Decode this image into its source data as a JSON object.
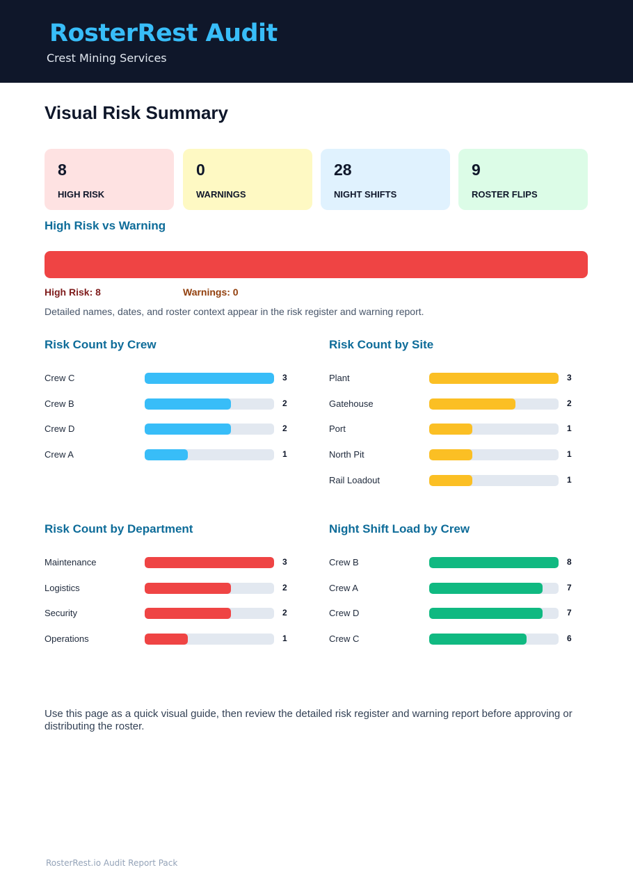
{
  "header": {
    "brand": "RosterRest Audit",
    "company": "Crest Mining Services"
  },
  "page_title": "Visual Risk Summary",
  "kpis": [
    {
      "value": "8",
      "label": "HIGH RISK",
      "bg": "#fee2e2"
    },
    {
      "value": "0",
      "label": "WARNINGS",
      "bg": "#fef9c3"
    },
    {
      "value": "28",
      "label": "NIGHT SHIFTS",
      "bg": "#e0f2fe"
    },
    {
      "value": "9",
      "label": "ROSTER FLIPS",
      "bg": "#dcfce7"
    }
  ],
  "compare": {
    "title": "High Risk vs Warning",
    "high_risk_label": "High Risk: 8",
    "warnings_label": "Warnings: 0",
    "high_risk_share": 1.0,
    "high_risk_color": "#ef4444",
    "high_risk_text_color": "#7f1d1d",
    "warnings_text_color": "#92400e"
  },
  "note": "Detailed names, dates, and roster context appear in the risk register and warning report.",
  "chart_data": [
    {
      "type": "bar",
      "title": "Risk Count by Crew",
      "categories": [
        "Crew C",
        "Crew B",
        "Crew D",
        "Crew A"
      ],
      "values": [
        3,
        2,
        2,
        1
      ],
      "max": 3,
      "color": "#38bdf8"
    },
    {
      "type": "bar",
      "title": "Risk Count by Site",
      "categories": [
        "Plant",
        "Gatehouse",
        "Port",
        "North Pit",
        "Rail Loadout"
      ],
      "values": [
        3,
        2,
        1,
        1,
        1
      ],
      "max": 3,
      "color": "#fbbf24"
    },
    {
      "type": "bar",
      "title": "Risk Count by Department",
      "categories": [
        "Maintenance",
        "Logistics",
        "Security",
        "Operations"
      ],
      "values": [
        3,
        2,
        2,
        1
      ],
      "max": 3,
      "color": "#ef4444"
    },
    {
      "type": "bar",
      "title": "Night Shift Load by Crew",
      "categories": [
        "Crew B",
        "Crew A",
        "Crew D",
        "Crew C"
      ],
      "values": [
        8,
        7,
        7,
        6
      ],
      "max": 8,
      "color": "#10b981"
    }
  ],
  "closing": "Use this page as a quick visual guide, then review the detailed risk register and warning report before approving or distributing the roster.",
  "footer": "RosterRest.io Audit Report Pack"
}
